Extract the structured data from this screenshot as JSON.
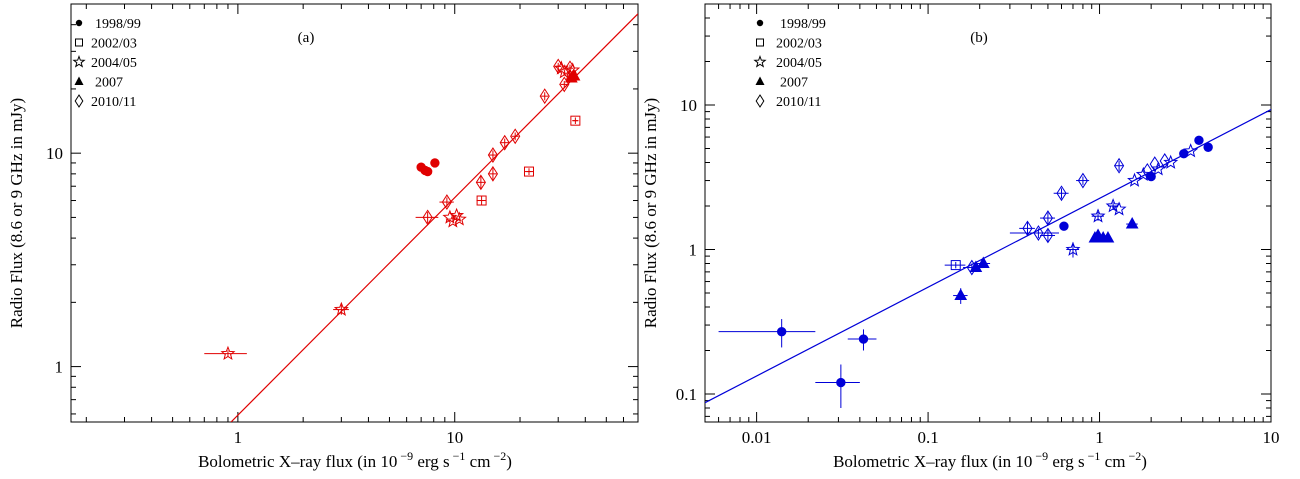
{
  "chart_data": [
    {
      "type": "scatter",
      "panel_label": "(a)",
      "color": "#e00000",
      "xscale": "log",
      "yscale": "log",
      "xlim": [
        0.17,
        70
      ],
      "ylim": [
        0.55,
        50
      ],
      "xticks": [
        {
          "v": 1,
          "label": "1"
        },
        {
          "v": 10,
          "label": "10"
        }
      ],
      "yticks": [
        {
          "v": 1,
          "label": "1"
        },
        {
          "v": 10,
          "label": "10"
        }
      ],
      "xlabel": "Bolometric X–ray flux (in 10",
      "xlabel_exp1": "−9",
      "xlabel_mid": " erg s",
      "xlabel_exp2": "−1",
      "xlabel_mid2": " cm",
      "xlabel_exp3": "−2",
      "xlabel_end": ")",
      "ylabel": "Radio Flux (8.6 or 9 GHz in mJy)",
      "legend_position": "top-left",
      "legend": [
        {
          "marker": "circle",
          "label": "1998/99"
        },
        {
          "marker": "square",
          "label": "2002/03"
        },
        {
          "marker": "star",
          "label": "2004/05"
        },
        {
          "marker": "triangle",
          "label": "2007"
        },
        {
          "marker": "diamond",
          "label": "2010/11"
        }
      ],
      "fit_line": {
        "x": [
          0.93,
          70
        ],
        "y": [
          0.55,
          45
        ]
      },
      "series": [
        {
          "marker": "circle",
          "points": [
            {
              "x": 7.0,
              "y": 8.6
            },
            {
              "x": 7.3,
              "y": 8.3
            },
            {
              "x": 7.5,
              "y": 8.2
            },
            {
              "x": 8.1,
              "y": 9.0
            }
          ]
        },
        {
          "marker": "square",
          "points": [
            {
              "x": 13.3,
              "y": 6.0,
              "xerr": 0.7,
              "yerr": 0.3
            },
            {
              "x": 22,
              "y": 8.2,
              "xerr": 1.0,
              "yerr": 0.3
            },
            {
              "x": 36,
              "y": 14.2,
              "xerr": 1.2,
              "yerr": 0.5
            }
          ]
        },
        {
          "marker": "star",
          "points": [
            {
              "x": 0.9,
              "y": 1.15,
              "xerr": 0.2,
              "yerr": 0.04
            },
            {
              "x": 3.0,
              "y": 1.85,
              "xerr": 0.25,
              "yerr": 0.1
            },
            {
              "x": 9.5,
              "y": 5.0
            },
            {
              "x": 9.8,
              "y": 4.8
            },
            {
              "x": 10.2,
              "y": 5.1
            },
            {
              "x": 10.5,
              "y": 4.9
            },
            {
              "x": 31,
              "y": 25
            },
            {
              "x": 32,
              "y": 24
            },
            {
              "x": 34,
              "y": 23
            },
            {
              "x": 35,
              "y": 24.5
            }
          ]
        },
        {
          "marker": "triangle",
          "points": [
            {
              "x": 34.5,
              "y": 22.5
            },
            {
              "x": 35.5,
              "y": 23.0
            }
          ]
        },
        {
          "marker": "diamond",
          "points": [
            {
              "x": 7.5,
              "y": 5.0,
              "xerr": 0.9,
              "yerr": 0.3
            },
            {
              "x": 9.2,
              "y": 5.9,
              "xerr": 0.7,
              "yerr": 0.3
            },
            {
              "x": 13.2,
              "y": 7.3,
              "xerr": 0.6,
              "yerr": 0.5
            },
            {
              "x": 15.0,
              "y": 8.0,
              "xerr": 0.6,
              "yerr": 0.5
            },
            {
              "x": 15.0,
              "y": 9.8,
              "xerr": 0.6,
              "yerr": 0.5
            },
            {
              "x": 17.0,
              "y": 11.2,
              "xerr": 0.7,
              "yerr": 0.5
            },
            {
              "x": 19.0,
              "y": 12.0,
              "xerr": 0.7,
              "yerr": 0.5
            },
            {
              "x": 26.0,
              "y": 18.5,
              "xerr": 1.0,
              "yerr": 0.8
            },
            {
              "x": 30.0,
              "y": 25.5,
              "xerr": 1.0,
              "yerr": 1.0
            },
            {
              "x": 32.0,
              "y": 21.0,
              "xerr": 1.2,
              "yerr": 0.8
            },
            {
              "x": 34.0,
              "y": 25.0,
              "xerr": 1.2,
              "yerr": 1.0
            }
          ]
        }
      ]
    },
    {
      "type": "scatter",
      "panel_label": "(b)",
      "color": "#0000d8",
      "xscale": "log",
      "yscale": "log",
      "xlim": [
        0.005,
        10
      ],
      "ylim": [
        0.064,
        50
      ],
      "xticks": [
        {
          "v": 0.01,
          "label": "0.01"
        },
        {
          "v": 0.1,
          "label": "0.1"
        },
        {
          "v": 1,
          "label": "1"
        },
        {
          "v": 10,
          "label": "10"
        }
      ],
      "yticks": [
        {
          "v": 0.1,
          "label": "0.1"
        },
        {
          "v": 1,
          "label": "1"
        },
        {
          "v": 10,
          "label": "10"
        }
      ],
      "xlabel": "Bolometric X–ray flux (in 10",
      "xlabel_exp1": "−9",
      "xlabel_mid": " erg s",
      "xlabel_exp2": "−1",
      "xlabel_mid2": " cm",
      "xlabel_exp3": "−2",
      "xlabel_end": ")",
      "ylabel": "Radio Flux (8.6 or 9 GHz in mJy)",
      "legend_position": "top-left",
      "legend": [
        {
          "marker": "circle",
          "label": "1998/99"
        },
        {
          "marker": "square",
          "label": "2002/03"
        },
        {
          "marker": "star",
          "label": "2004/05"
        },
        {
          "marker": "triangle",
          "label": "2007"
        },
        {
          "marker": "diamond",
          "label": "2010/11"
        }
      ],
      "fit_line": {
        "x": [
          0.005,
          10
        ],
        "y": [
          0.087,
          9.3
        ]
      },
      "series": [
        {
          "marker": "circle",
          "points": [
            {
              "x": 0.014,
              "y": 0.27,
              "xerr": 0.008,
              "yerr": 0.06
            },
            {
              "x": 0.031,
              "y": 0.12,
              "xerr": 0.009,
              "yerr": 0.04
            },
            {
              "x": 0.042,
              "y": 0.24,
              "xerr": 0.008,
              "yerr": 0.04
            },
            {
              "x": 0.62,
              "y": 1.45
            },
            {
              "x": 2.0,
              "y": 3.2
            },
            {
              "x": 3.1,
              "y": 4.6
            },
            {
              "x": 3.8,
              "y": 5.7
            },
            {
              "x": 4.3,
              "y": 5.1
            }
          ]
        },
        {
          "marker": "square",
          "points": [
            {
              "x": 0.145,
              "y": 0.78,
              "xerr": 0.02,
              "yerr": 0.04
            }
          ]
        },
        {
          "marker": "star",
          "points": [
            {
              "x": 0.7,
              "y": 1.0,
              "xerr": 0.06,
              "yerr": 0.12
            },
            {
              "x": 0.98,
              "y": 1.7,
              "xerr": 0.08,
              "yerr": 0.12
            },
            {
              "x": 1.2,
              "y": 2.0,
              "xerr": 0.08,
              "yerr": 0.12
            },
            {
              "x": 1.3,
              "y": 1.9
            },
            {
              "x": 1.6,
              "y": 3.0
            },
            {
              "x": 1.8,
              "y": 3.3
            },
            {
              "x": 2.2,
              "y": 3.6
            },
            {
              "x": 2.6,
              "y": 4.0
            },
            {
              "x": 3.4,
              "y": 4.8
            }
          ]
        },
        {
          "marker": "triangle",
          "points": [
            {
              "x": 0.155,
              "y": 0.48,
              "xerr": 0.015,
              "yerr": 0.06
            },
            {
              "x": 0.19,
              "y": 0.75,
              "xerr": 0.02,
              "yerr": 0.05
            },
            {
              "x": 0.21,
              "y": 0.8,
              "xerr": 0.02,
              "yerr": 0.05
            },
            {
              "x": 0.94,
              "y": 1.2
            },
            {
              "x": 0.98,
              "y": 1.25
            },
            {
              "x": 1.05,
              "y": 1.2
            },
            {
              "x": 1.12,
              "y": 1.2
            },
            {
              "x": 1.55,
              "y": 1.5,
              "xerr": 0.12,
              "yerr": 0.06
            }
          ]
        },
        {
          "marker": "diamond",
          "points": [
            {
              "x": 0.18,
              "y": 0.75,
              "xerr": 0.02,
              "yerr": 0.05
            },
            {
              "x": 0.38,
              "y": 1.4,
              "xerr": 0.04,
              "yerr": 0.15
            },
            {
              "x": 0.44,
              "y": 1.3,
              "xerr": 0.14,
              "yerr": 0.1
            },
            {
              "x": 0.5,
              "y": 1.65,
              "xerr": 0.05,
              "yerr": 0.15
            },
            {
              "x": 0.5,
              "y": 1.25,
              "xerr": 0.05,
              "yerr": 0.12
            },
            {
              "x": 0.6,
              "y": 2.45,
              "xerr": 0.06,
              "yerr": 0.2
            },
            {
              "x": 0.8,
              "y": 3.0,
              "xerr": 0.07,
              "yerr": 0.2
            },
            {
              "x": 1.3,
              "y": 3.8,
              "xerr": 0.08,
              "yerr": 0.3
            },
            {
              "x": 1.9,
              "y": 3.5
            },
            {
              "x": 2.1,
              "y": 3.9
            },
            {
              "x": 2.4,
              "y": 4.1
            }
          ]
        }
      ]
    }
  ]
}
